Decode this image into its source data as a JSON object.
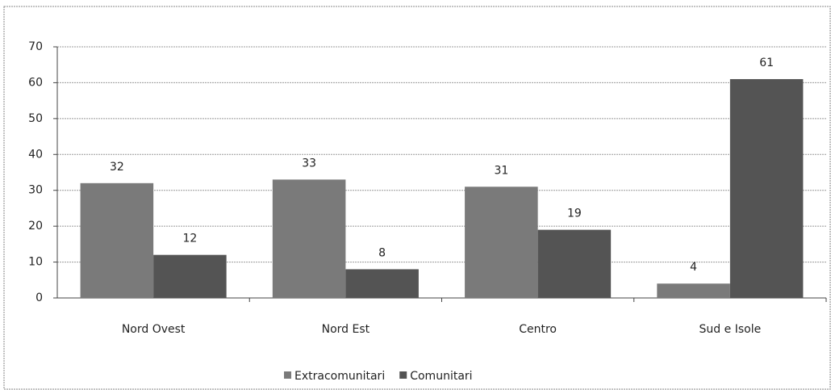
{
  "chart_data": {
    "type": "bar",
    "categories": [
      "Nord Ovest",
      "Nord Est",
      "Centro",
      "Sud e Isole"
    ],
    "series": [
      {
        "name": "Extracomunitari",
        "color": "#7a7a7a",
        "values": [
          32,
          33,
          31,
          4
        ]
      },
      {
        "name": "Comunitari",
        "color": "#545454",
        "values": [
          12,
          8,
          19,
          61
        ]
      }
    ],
    "ylim": [
      0,
      70
    ],
    "yticks": [
      0,
      10,
      20,
      30,
      40,
      50,
      60,
      70
    ],
    "grid": true,
    "legend": "bottom"
  }
}
